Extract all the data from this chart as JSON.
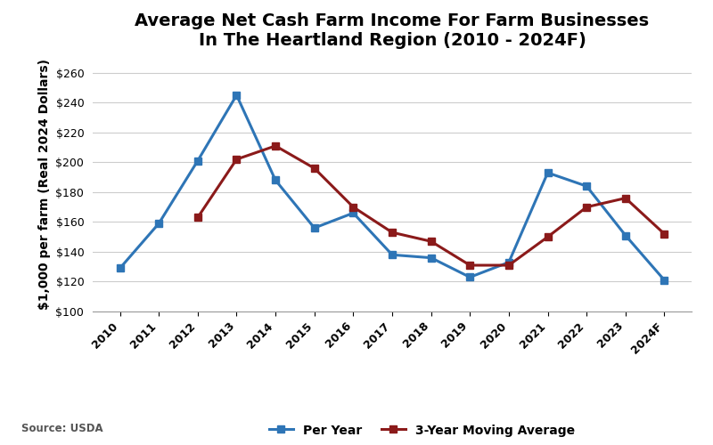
{
  "title": "Average Net Cash Farm Income For Farm Businesses\nIn The Heartland Region (2010 - 2024F)",
  "ylabel": "$1,000 per farm (Real 2024 Dollars)",
  "source": "Source: USDA",
  "years": [
    "2010",
    "2011",
    "2012",
    "2013",
    "2014",
    "2015",
    "2016",
    "2017",
    "2018",
    "2019",
    "2020",
    "2021",
    "2022",
    "2023",
    "2024F"
  ],
  "per_year": [
    129,
    159,
    201,
    245,
    188,
    156,
    166,
    138,
    136,
    123,
    133,
    193,
    184,
    151,
    121
  ],
  "moving_avg": [
    null,
    null,
    163,
    202,
    211,
    196,
    170,
    153,
    147,
    131,
    131,
    150,
    170,
    176,
    152
  ],
  "per_year_color": "#2E75B6",
  "moving_avg_color": "#8B1A1A",
  "ylim": [
    100,
    270
  ],
  "yticks": [
    100,
    120,
    140,
    160,
    180,
    200,
    220,
    240,
    260
  ],
  "background_color": "#FFFFFF",
  "grid_color": "#CCCCCC",
  "title_fontsize": 14,
  "axis_fontsize": 10,
  "legend_fontsize": 10,
  "tick_fontsize": 9
}
